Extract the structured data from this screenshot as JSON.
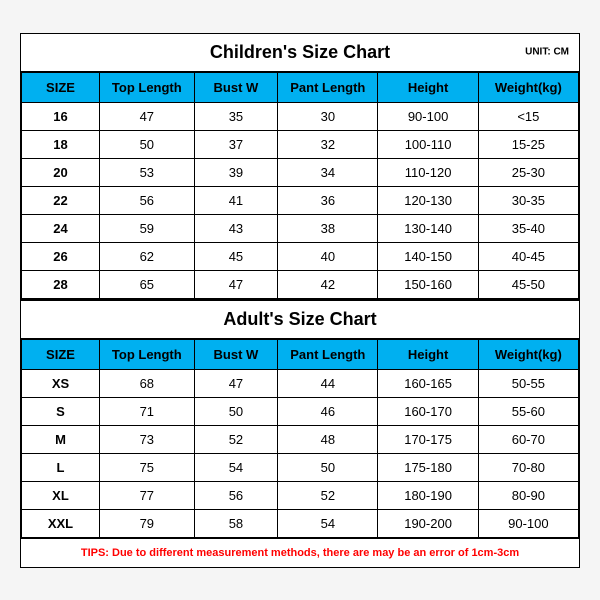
{
  "children": {
    "title": "Children's Size Chart",
    "unit": "UNIT: CM",
    "columns": [
      "SIZE",
      "Top Length",
      "Bust W",
      "Pant Length",
      "Height",
      "Weight(kg)"
    ],
    "rows": [
      [
        "16",
        "47",
        "35",
        "30",
        "90-100",
        "<15"
      ],
      [
        "18",
        "50",
        "37",
        "32",
        "100-110",
        "15-25"
      ],
      [
        "20",
        "53",
        "39",
        "34",
        "110-120",
        "25-30"
      ],
      [
        "22",
        "56",
        "41",
        "36",
        "120-130",
        "30-35"
      ],
      [
        "24",
        "59",
        "43",
        "38",
        "130-140",
        "35-40"
      ],
      [
        "26",
        "62",
        "45",
        "40",
        "140-150",
        "40-45"
      ],
      [
        "28",
        "65",
        "47",
        "42",
        "150-160",
        "45-50"
      ]
    ]
  },
  "adult": {
    "title": "Adult's Size Chart",
    "columns": [
      "SIZE",
      "Top Length",
      "Bust W",
      "Pant Length",
      "Height",
      "Weight(kg)"
    ],
    "rows": [
      [
        "XS",
        "68",
        "47",
        "44",
        "160-165",
        "50-55"
      ],
      [
        "S",
        "71",
        "50",
        "46",
        "160-170",
        "55-60"
      ],
      [
        "M",
        "73",
        "52",
        "48",
        "170-175",
        "60-70"
      ],
      [
        "L",
        "75",
        "54",
        "50",
        "175-180",
        "70-80"
      ],
      [
        "XL",
        "77",
        "56",
        "52",
        "180-190",
        "80-90"
      ],
      [
        "XXL",
        "79",
        "58",
        "54",
        "190-200",
        "90-100"
      ]
    ]
  },
  "tips": "TIPS: Due to different measurement methods, there are may be an error of 1cm-3cm",
  "col_widths": [
    "14%",
    "17%",
    "15%",
    "18%",
    "18%",
    "18%"
  ]
}
